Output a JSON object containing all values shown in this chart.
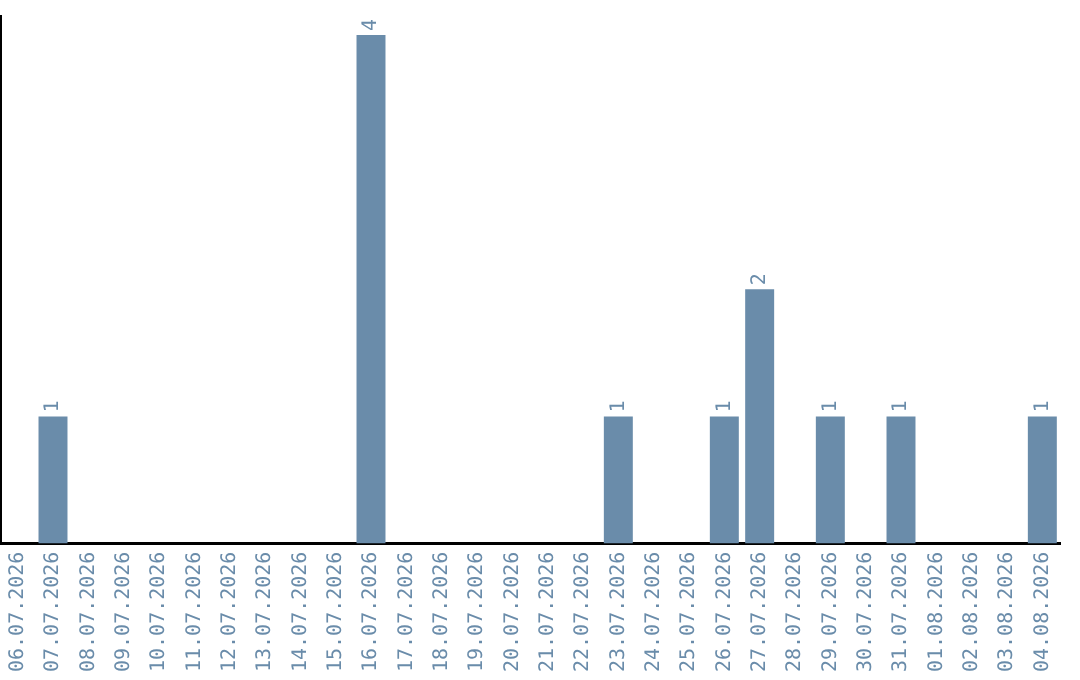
{
  "chart_data": {
    "type": "bar",
    "categories": [
      "06.07.2026",
      "07.07.2026",
      "08.07.2026",
      "09.07.2026",
      "10.07.2026",
      "11.07.2026",
      "12.07.2026",
      "13.07.2026",
      "14.07.2026",
      "15.07.2026",
      "16.07.2026",
      "17.07.2026",
      "18.07.2026",
      "19.07.2026",
      "20.07.2026",
      "21.07.2026",
      "22.07.2026",
      "23.07.2026",
      "24.07.2026",
      "25.07.2026",
      "26.07.2026",
      "27.07.2026",
      "28.07.2026",
      "29.07.2026",
      "30.07.2026",
      "31.07.2026",
      "01.08.2026",
      "02.08.2026",
      "03.08.2026",
      "04.08.2026"
    ],
    "values": [
      0,
      1,
      0,
      0,
      0,
      0,
      0,
      0,
      0,
      0,
      4,
      0,
      0,
      0,
      0,
      0,
      0,
      1,
      0,
      0,
      1,
      2,
      0,
      1,
      0,
      1,
      0,
      0,
      0,
      1
    ],
    "value_labels": [
      null,
      "1",
      null,
      null,
      null,
      null,
      null,
      null,
      null,
      null,
      "4",
      null,
      null,
      null,
      null,
      null,
      null,
      "1",
      null,
      null,
      "1",
      "2",
      null,
      "1",
      null,
      "1",
      null,
      null,
      null,
      "1"
    ],
    "color": "#6a8caa",
    "ylim": [
      0,
      4.15
    ],
    "tick_labels": "x",
    "grid": false,
    "legend": false
  }
}
